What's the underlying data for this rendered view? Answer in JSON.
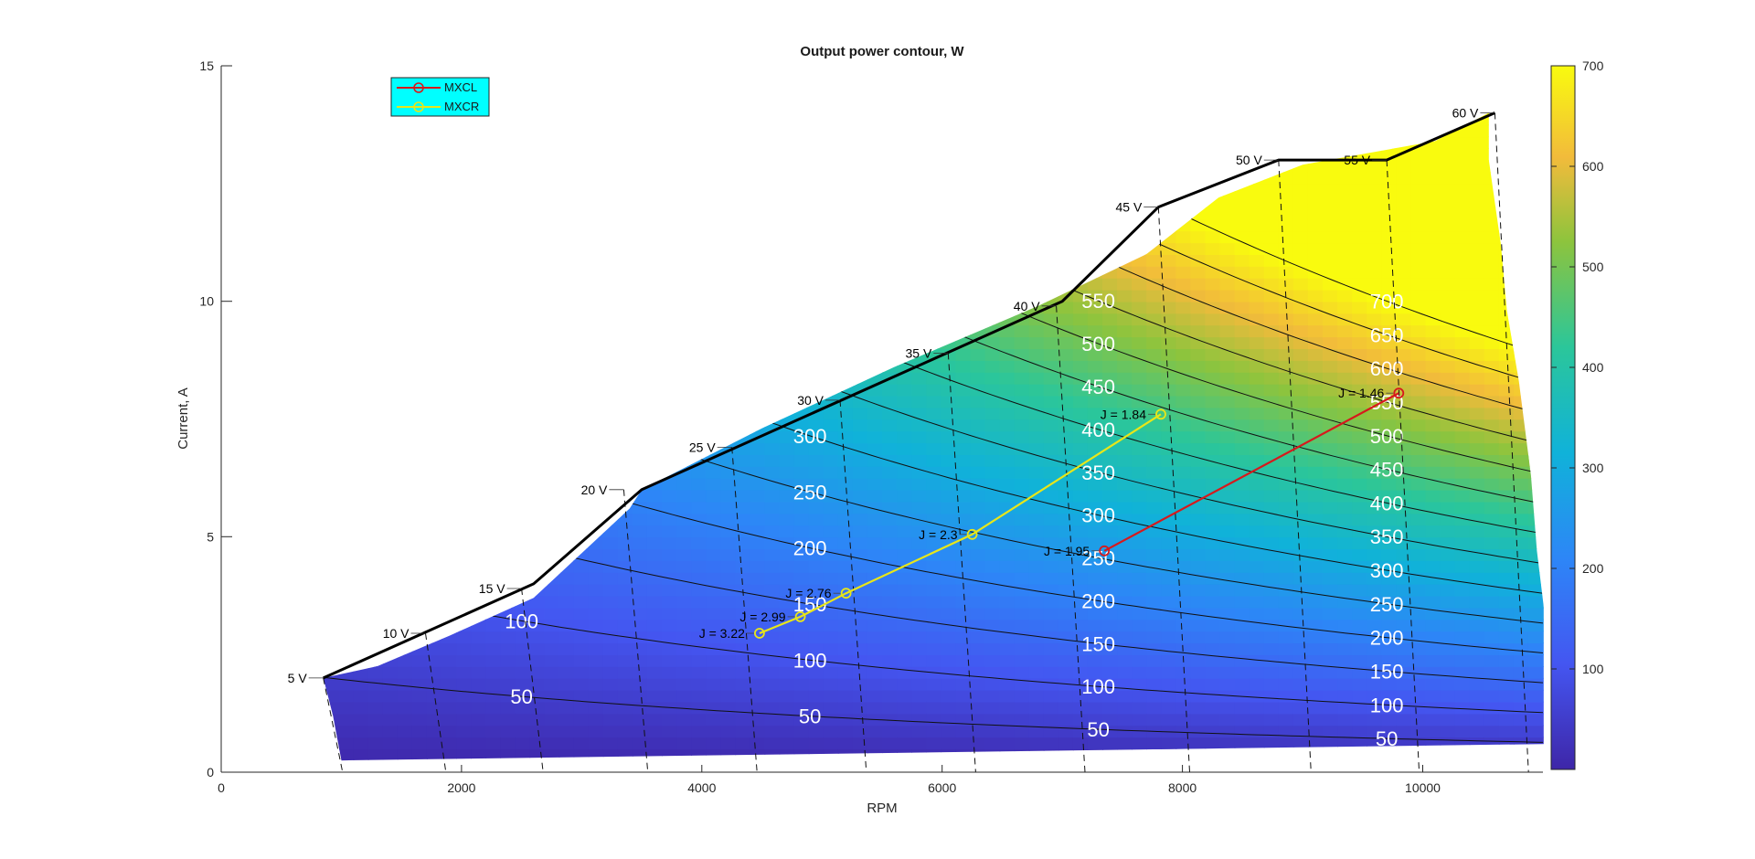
{
  "chart_data": {
    "type": "contour",
    "title": "Output power contour, W",
    "xlabel": "RPM",
    "ylabel": "Current, A",
    "xlim": [
      0,
      11000
    ],
    "ylim": [
      0,
      15
    ],
    "xticks": [
      "0",
      "2000",
      "4000",
      "6000",
      "8000",
      "10000"
    ],
    "yticks": [
      "0",
      "5",
      "10",
      "15"
    ],
    "grid": false,
    "colormap": "parula",
    "colorbar": {
      "range": [
        0,
        700
      ],
      "ticks": [
        "100",
        "200",
        "300",
        "400",
        "500",
        "600",
        "700"
      ]
    },
    "region_boundary": [
      [
        850,
        2
      ],
      [
        1300,
        2.25
      ],
      [
        1900,
        2.9
      ],
      [
        2600,
        3.7
      ],
      [
        3400,
        5.6
      ],
      [
        3500,
        6
      ],
      [
        4500,
        7.3
      ],
      [
        5600,
        8.6
      ],
      [
        6800,
        9.9
      ],
      [
        7700,
        11.0
      ],
      [
        8300,
        12.2
      ],
      [
        9000,
        12.9
      ],
      [
        10100,
        13.4
      ],
      [
        10550,
        14.0
      ],
      [
        10550,
        13.0
      ],
      [
        10650,
        11.2
      ],
      [
        10700,
        9.8
      ],
      [
        10800,
        8.3
      ],
      [
        10900,
        6.3
      ],
      [
        10950,
        4.7
      ],
      [
        11050,
        2.6
      ],
      [
        11050,
        0.6
      ],
      [
        1000,
        0.25
      ],
      [
        930,
        1.2
      ]
    ],
    "contour_levels": [
      "50",
      "100",
      "150",
      "200",
      "250",
      "300",
      "350",
      "400",
      "450",
      "500",
      "550",
      "600",
      "650",
      "700"
    ],
    "voltage_lines": {
      "labels": [
        "5 V",
        "10 V",
        "15 V",
        "20 V",
        "25 V",
        "30 V",
        "35 V",
        "40 V",
        "45 V",
        "50 V",
        "55 V",
        "60 V"
      ],
      "label_points": [
        [
          850,
          2
        ],
        [
          1700,
          2.95
        ],
        [
          2500,
          3.9
        ],
        [
          3350,
          6
        ],
        [
          4250,
          6.9
        ],
        [
          5150,
          7.9
        ],
        [
          6050,
          8.9
        ],
        [
          6950,
          9.9
        ],
        [
          7800,
          12
        ],
        [
          8800,
          13
        ],
        [
          9700,
          13
        ],
        [
          10600,
          14
        ]
      ]
    },
    "limit_line": [
      [
        850,
        2
      ],
      [
        2600,
        4
      ],
      [
        3500,
        6
      ],
      [
        7000,
        10
      ],
      [
        7800,
        12
      ],
      [
        8800,
        13
      ],
      [
        9700,
        13
      ],
      [
        10600,
        14
      ]
    ],
    "legend": {
      "position": "top-left",
      "entries": [
        "MXCL",
        "MXCR"
      ]
    },
    "series": [
      {
        "name": "MXCL",
        "color": "#d7191c",
        "marker": "o",
        "points": [
          [
            7350,
            4.7
          ],
          [
            9800,
            8.05
          ]
        ],
        "labels": [
          "J = 1.95",
          "J = 1.46"
        ]
      },
      {
        "name": "MXCR",
        "color": "#e8e619",
        "marker": "o",
        "points": [
          [
            4480,
            2.95
          ],
          [
            4820,
            3.3
          ],
          [
            5200,
            3.8
          ],
          [
            6250,
            5.05
          ],
          [
            7820,
            7.6
          ]
        ],
        "labels": [
          "J = 3.22",
          "J = 2.99",
          "J = 2.76",
          "J = 2.3",
          "J = 1.84"
        ]
      }
    ]
  }
}
